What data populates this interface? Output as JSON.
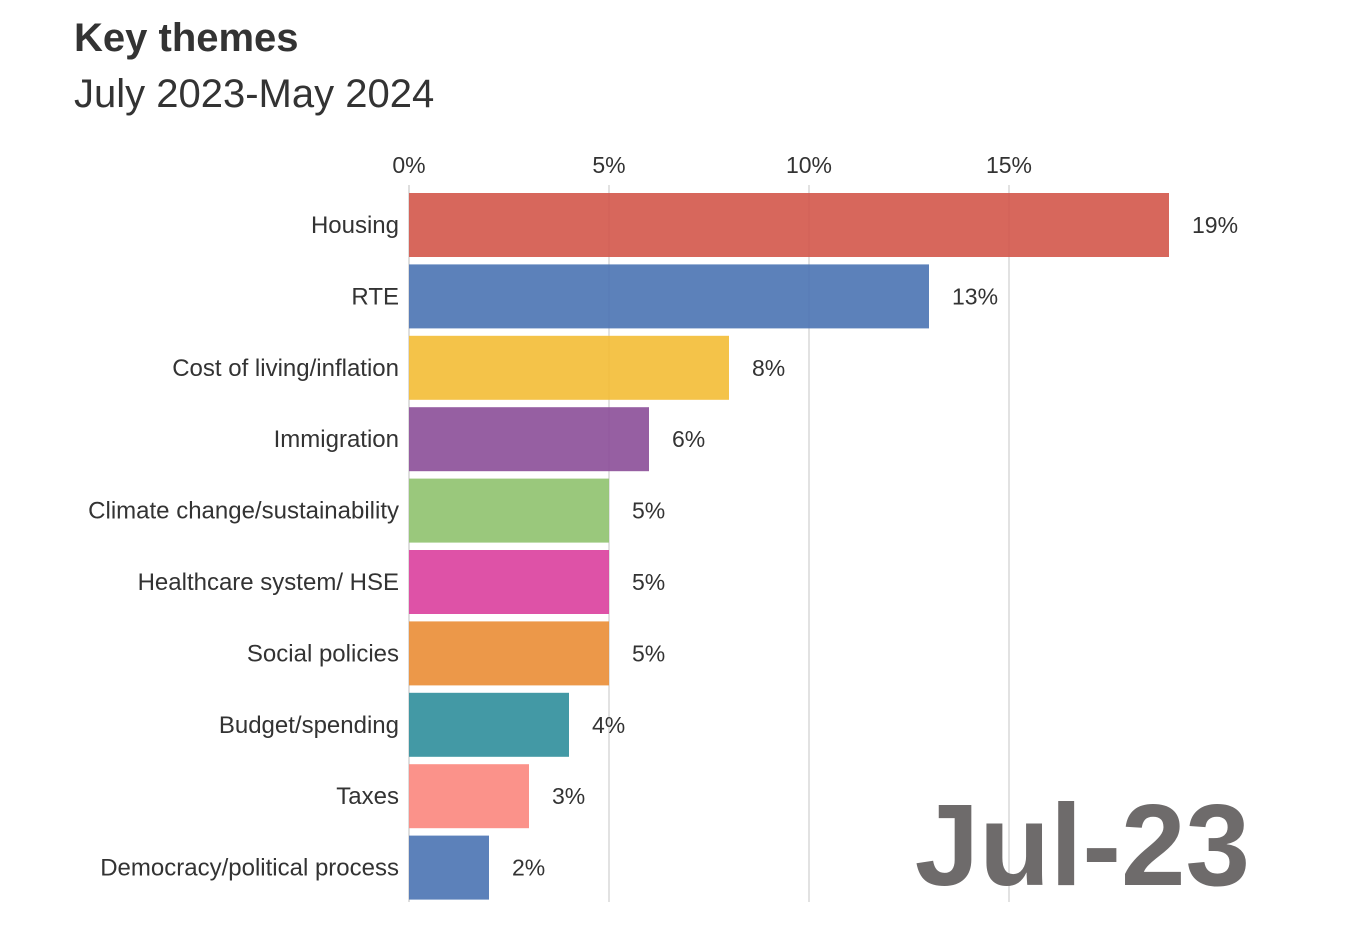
{
  "chart_data": {
    "type": "bar",
    "orientation": "horizontal",
    "title": "Key themes",
    "subtitle": "July 2023-May 2024",
    "period_label": "Jul-23",
    "xlim": [
      0,
      19
    ],
    "x_ticks": [
      0,
      5,
      10,
      15
    ],
    "x_tick_labels": [
      "0%",
      "5%",
      "10%",
      "15%"
    ],
    "categories": [
      "Housing",
      "RTE",
      "Cost of living/inflation",
      "Immigration",
      "Climate change/sustainability",
      "Healthcare system/ HSE",
      "Social policies",
      "Budget/spending",
      "Taxes",
      "Democracy/political process"
    ],
    "values": [
      19,
      13,
      8,
      6,
      5,
      5,
      5,
      4,
      3,
      2
    ],
    "value_labels": [
      "19%",
      "13%",
      "8%",
      "6%",
      "5%",
      "5%",
      "5%",
      "4%",
      "3%",
      "2%"
    ],
    "colors": [
      "#d3574a",
      "#4a73b3",
      "#f3bd35",
      "#8b4e98",
      "#8fc26e",
      "#da3f9d",
      "#ea8d35",
      "#2f8e9b",
      "#fb867d",
      "#4a73b3"
    ],
    "grid": true
  }
}
